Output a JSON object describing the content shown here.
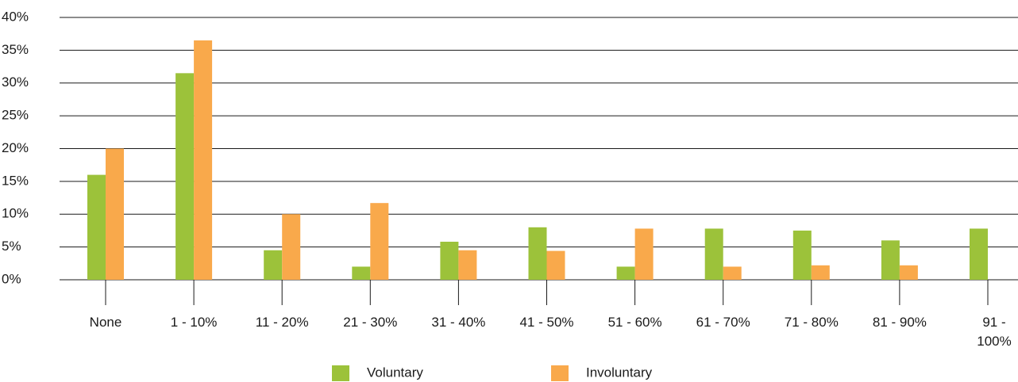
{
  "chart_data": {
    "type": "bar",
    "categories": [
      "None",
      "1 - 10%",
      "11 - 20%",
      "21 - 30%",
      "31 - 40%",
      "41 - 50%",
      "51 - 60%",
      "61 - 70%",
      "71 - 80%",
      "81 - 90%",
      "91 - 100%"
    ],
    "series": [
      {
        "name": "Voluntary",
        "color": "#9cc23a",
        "values": [
          16,
          31.5,
          4.5,
          2,
          5.8,
          8,
          2,
          7.8,
          7.5,
          6,
          7.8
        ]
      },
      {
        "name": "Involuntary",
        "color": "#f9a94b",
        "values": [
          20,
          36.5,
          10,
          11.7,
          4.5,
          4.4,
          7.8,
          2,
          2.2,
          2.2,
          0
        ]
      }
    ],
    "ylim": [
      0,
      40
    ],
    "yticks": [
      {
        "value": 0,
        "label": "0%"
      },
      {
        "value": 5,
        "label": "5%"
      },
      {
        "value": 10,
        "label": "10%"
      },
      {
        "value": 15,
        "label": "15%"
      },
      {
        "value": 20,
        "label": "20%"
      },
      {
        "value": 25,
        "label": "25%"
      },
      {
        "value": 30,
        "label": "30%"
      },
      {
        "value": 35,
        "label": "35%"
      },
      {
        "value": 40,
        "label": "40%"
      }
    ],
    "grid": true,
    "legend": "bottom"
  }
}
